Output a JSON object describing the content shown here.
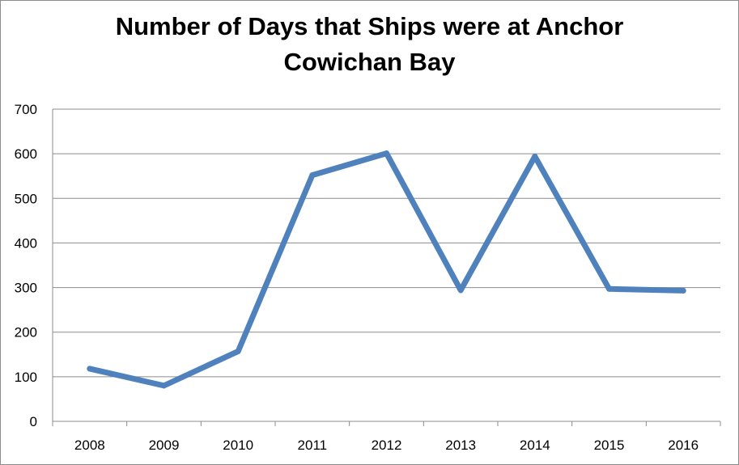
{
  "chart_data": {
    "type": "line",
    "title": [
      "Number of Days that Ships were at Anchor",
      "Cowichan Bay"
    ],
    "categories": [
      "2008",
      "2009",
      "2010",
      "2011",
      "2012",
      "2013",
      "2014",
      "2015",
      "2016"
    ],
    "series": [
      {
        "values": [
          118,
          80,
          157,
          552,
          601,
          294,
          594,
          297,
          293
        ],
        "color": "#4f81bd"
      }
    ],
    "ylim": [
      0,
      700
    ],
    "yticks": [
      0,
      100,
      200,
      300,
      400,
      500,
      600,
      700
    ],
    "grid": true,
    "legend": "none"
  }
}
